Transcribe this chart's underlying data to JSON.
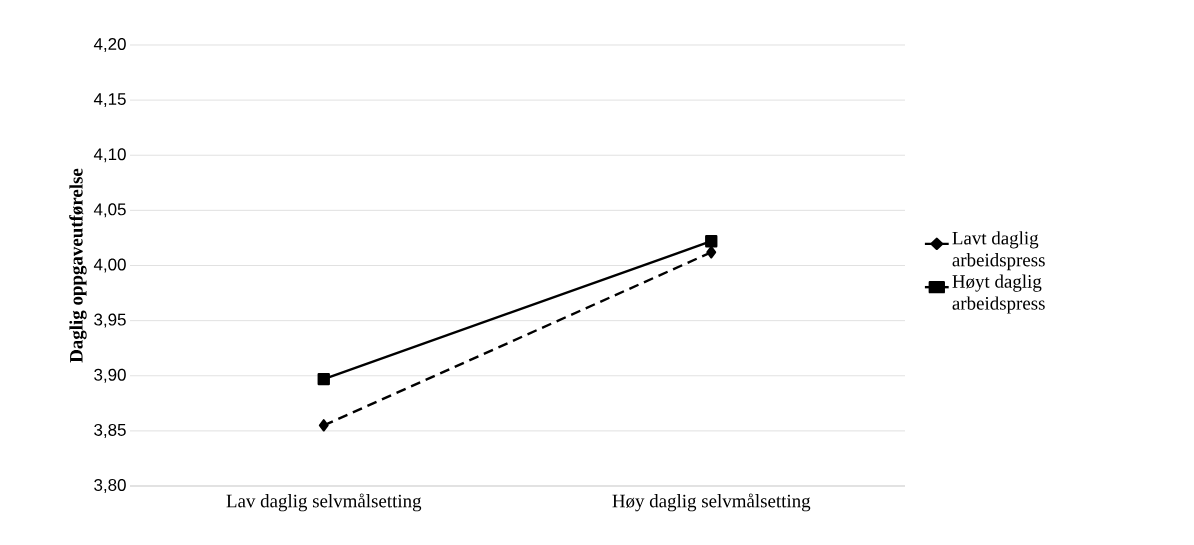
{
  "chart_data": {
    "type": "line",
    "ylabel": "Daglig oppgaveutførelse",
    "categories": [
      "Lav daglig selvmålsetting",
      "Høy daglig selvmålsetting"
    ],
    "series": [
      {
        "name": "Lavt daglig arbeidspress",
        "color": "#000000",
        "values": [
          3.855,
          4.012
        ],
        "marker": "diamond",
        "line_style": "dashed"
      },
      {
        "name": "Høyt daglig arbeidspress",
        "color": "#000000",
        "values": [
          3.897,
          4.022
        ],
        "marker": "square",
        "line_style": "solid"
      }
    ],
    "ylim": [
      3.8,
      4.2
    ],
    "yticks": [
      {
        "value": 3.8,
        "label": "3,80"
      },
      {
        "value": 3.85,
        "label": "3,85"
      },
      {
        "value": 3.9,
        "label": "3,90"
      },
      {
        "value": 3.95,
        "label": "3,95"
      },
      {
        "value": 4.0,
        "label": "4,00"
      },
      {
        "value": 4.05,
        "label": "4,05"
      },
      {
        "value": 4.1,
        "label": "4,10"
      },
      {
        "value": 4.15,
        "label": "4,15"
      },
      {
        "value": 4.2,
        "label": "4,20"
      }
    ],
    "grid": "y",
    "legend": "right"
  }
}
